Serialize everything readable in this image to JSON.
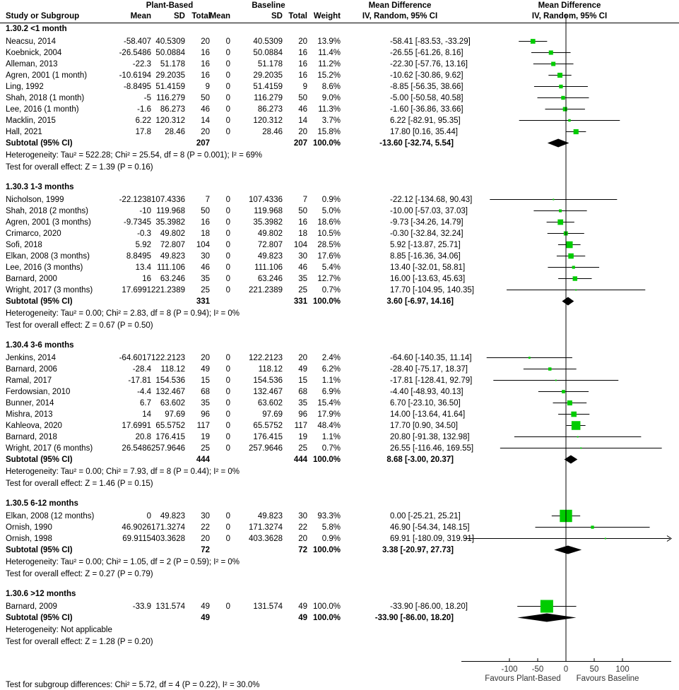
{
  "headers": {
    "study": "Study or Subgroup",
    "group_plant": "Plant-Based",
    "group_base": "Baseline",
    "mean": "Mean",
    "sd": "SD",
    "total": "Total",
    "weight": "Weight",
    "md_title": "Mean Difference",
    "md_method": "IV, Random, 95% CI"
  },
  "chart_data": {
    "type": "forest",
    "measure": "Mean Difference",
    "method": "IV, Random, 95% CI",
    "xlim": [
      -185,
      185
    ],
    "xticks": [
      -100,
      -50,
      0,
      50,
      100
    ],
    "xtick_labels": [
      "-100",
      "-50",
      "0",
      "50",
      "100"
    ],
    "favours_left": "Favours Plant-Based",
    "favours_right": "Favours Baseline",
    "marker_color": "#00cc00",
    "subtotal_label": "Subtotal (95% CI)",
    "groups": [
      {
        "title": "1.30.2 <1 month",
        "studies": [
          [
            "Neacsu, 2014",
            "-58.407",
            "40.5309",
            "20",
            "0",
            "40.5309",
            "20",
            "13.9%",
            "-58.41 [-83.53, -33.29]"
          ],
          [
            "Koebnick, 2004",
            "-26.5486",
            "50.0884",
            "16",
            "0",
            "50.0884",
            "16",
            "11.4%",
            "-26.55 [-61.26, 8.16]"
          ],
          [
            "Alleman, 2013",
            "-22.3",
            "51.178",
            "16",
            "0",
            "51.178",
            "16",
            "11.2%",
            "-22.30 [-57.76, 13.16]"
          ],
          [
            "Agren, 2001 (1 month)",
            "-10.6194",
            "29.2035",
            "16",
            "0",
            "29.2035",
            "16",
            "15.2%",
            "-10.62 [-30.86, 9.62]"
          ],
          [
            "Ling, 1992",
            "-8.8495",
            "51.4159",
            "9",
            "0",
            "51.4159",
            "9",
            "8.6%",
            "-8.85 [-56.35, 38.66]"
          ],
          [
            "Shah, 2018 (1 month)",
            "-5",
            "116.279",
            "50",
            "0",
            "116.279",
            "50",
            "9.0%",
            "-5.00 [-50.58, 40.58]"
          ],
          [
            "Lee, 2016 (1 month)",
            "-1.6",
            "86.273",
            "46",
            "0",
            "86.273",
            "46",
            "11.3%",
            "-1.60 [-36.86, 33.66]"
          ],
          [
            "Macklin, 2015",
            "6.22",
            "120.312",
            "14",
            "0",
            "120.312",
            "14",
            "3.7%",
            "6.22 [-82.91, 95.35]"
          ],
          [
            "Hall, 2021",
            "17.8",
            "28.46",
            "20",
            "0",
            "28.46",
            "20",
            "15.8%",
            "17.80 [0.16, 35.44]"
          ]
        ],
        "subtotal": {
          "plant_total": "207",
          "base_total": "207",
          "weight": "100.0%",
          "ci": "-13.60 [-32.74, 5.54]"
        },
        "heterogeneity": "Heterogeneity: Tau² = 522.28; Chi² = 25.54, df = 8 (P = 0.001); I² = 69%",
        "overall": "Test for overall effect: Z = 1.39 (P = 0.16)"
      },
      {
        "title": "1.30.3 1-3 months",
        "studies": [
          [
            "Nicholson, 1999",
            "-22.1238",
            "107.4336",
            "7",
            "0",
            "107.4336",
            "7",
            "0.9%",
            "-22.12 [-134.68, 90.43]"
          ],
          [
            "Shah, 2018 (2 months)",
            "-10",
            "119.968",
            "50",
            "0",
            "119.968",
            "50",
            "5.0%",
            "-10.00 [-57.03, 37.03]"
          ],
          [
            "Agren, 2001 (3 months)",
            "-9.7345",
            "35.3982",
            "16",
            "0",
            "35.3982",
            "16",
            "18.6%",
            "-9.73 [-34.26, 14.79]"
          ],
          [
            "Crimarco, 2020",
            "-0.3",
            "49.802",
            "18",
            "0",
            "49.802",
            "18",
            "10.5%",
            "-0.30 [-32.84, 32.24]"
          ],
          [
            "Sofi, 2018",
            "5.92",
            "72.807",
            "104",
            "0",
            "72.807",
            "104",
            "28.5%",
            "5.92 [-13.87, 25.71]"
          ],
          [
            "Elkan, 2008 (3 months)",
            "8.8495",
            "49.823",
            "30",
            "0",
            "49.823",
            "30",
            "17.6%",
            "8.85 [-16.36, 34.06]"
          ],
          [
            "Lee, 2016 (3 months)",
            "13.4",
            "111.106",
            "46",
            "0",
            "111.106",
            "46",
            "5.4%",
            "13.40 [-32.01, 58.81]"
          ],
          [
            "Barnard, 2000",
            "16",
            "63.246",
            "35",
            "0",
            "63.246",
            "35",
            "12.7%",
            "16.00 [-13.63, 45.63]"
          ],
          [
            "Wright, 2017 (3 months)",
            "17.6991",
            "221.2389",
            "25",
            "0",
            "221.2389",
            "25",
            "0.7%",
            "17.70 [-104.95, 140.35]"
          ]
        ],
        "subtotal": {
          "plant_total": "331",
          "base_total": "331",
          "weight": "100.0%",
          "ci": "3.60 [-6.97, 14.16]"
        },
        "heterogeneity": "Heterogeneity: Tau² = 0.00; Chi² = 2.83, df = 8 (P = 0.94); I² = 0%",
        "overall": "Test for overall effect: Z = 0.67 (P = 0.50)"
      },
      {
        "title": "1.30.4 3-6 months",
        "studies": [
          [
            "Jenkins, 2014",
            "-64.6017",
            "122.2123",
            "20",
            "0",
            "122.2123",
            "20",
            "2.4%",
            "-64.60 [-140.35, 11.14]"
          ],
          [
            "Barnard, 2006",
            "-28.4",
            "118.12",
            "49",
            "0",
            "118.12",
            "49",
            "6.2%",
            "-28.40 [-75.17, 18.37]"
          ],
          [
            "Ramal, 2017",
            "-17.81",
            "154.536",
            "15",
            "0",
            "154.536",
            "15",
            "1.1%",
            "-17.81 [-128.41, 92.79]"
          ],
          [
            "Ferdowsian, 2010",
            "-4.4",
            "132.467",
            "68",
            "0",
            "132.467",
            "68",
            "6.9%",
            "-4.40 [-48.93, 40.13]"
          ],
          [
            "Bunner, 2014",
            "6.7",
            "63.602",
            "35",
            "0",
            "63.602",
            "35",
            "15.4%",
            "6.70 [-23.10, 36.50]"
          ],
          [
            "Mishra, 2013",
            "14",
            "97.69",
            "96",
            "0",
            "97.69",
            "96",
            "17.9%",
            "14.00 [-13.64, 41.64]"
          ],
          [
            "Kahleova, 2020",
            "17.6991",
            "65.5752",
            "117",
            "0",
            "65.5752",
            "117",
            "48.4%",
            "17.70 [0.90, 34.50]"
          ],
          [
            "Barnard, 2018",
            "20.8",
            "176.415",
            "19",
            "0",
            "176.415",
            "19",
            "1.1%",
            "20.80 [-91.38, 132.98]"
          ],
          [
            "Wright, 2017 (6 months)",
            "26.5486",
            "257.9646",
            "25",
            "0",
            "257.9646",
            "25",
            "0.7%",
            "26.55 [-116.46, 169.55]"
          ]
        ],
        "subtotal": {
          "plant_total": "444",
          "base_total": "444",
          "weight": "100.0%",
          "ci": "8.68 [-3.00, 20.37]"
        },
        "heterogeneity": "Heterogeneity: Tau² = 0.00; Chi² = 7.93, df = 8 (P = 0.44); I² = 0%",
        "overall": "Test for overall effect: Z = 1.46 (P = 0.15)"
      },
      {
        "title": "1.30.5 6-12 months",
        "studies": [
          [
            "Elkan, 2008 (12 months)",
            "0",
            "49.823",
            "30",
            "0",
            "49.823",
            "30",
            "93.3%",
            "0.00 [-25.21, 25.21]"
          ],
          [
            "Ornish, 1990",
            "46.9026",
            "171.3274",
            "22",
            "0",
            "171.3274",
            "22",
            "5.8%",
            "46.90 [-54.34, 148.15]"
          ],
          [
            "Ornish, 1998",
            "69.9115",
            "403.3628",
            "20",
            "0",
            "403.3628",
            "20",
            "0.9%",
            "69.91 [-180.09, 319.91]"
          ]
        ],
        "subtotal": {
          "plant_total": "72",
          "base_total": "72",
          "weight": "100.0%",
          "ci": "3.38 [-20.97, 27.73]"
        },
        "heterogeneity": "Heterogeneity: Tau² = 0.00; Chi² = 1.05, df = 2 (P = 0.59); I² = 0%",
        "overall": "Test for overall effect: Z = 0.27 (P = 0.79)"
      },
      {
        "title": "1.30.6 >12 months",
        "studies": [
          [
            "Barnard, 2009",
            "-33.9",
            "131.574",
            "49",
            "0",
            "131.574",
            "49",
            "100.0%",
            "-33.90 [-86.00, 18.20]"
          ]
        ],
        "subtotal": {
          "plant_total": "49",
          "base_total": "49",
          "weight": "100.0%",
          "ci": "-33.90 [-86.00, 18.20]"
        },
        "heterogeneity": "Heterogeneity: Not applicable",
        "overall": "Test for overall effect: Z = 1.28 (P = 0.20)"
      }
    ],
    "subgroup_test": "Test for subgroup differences: Chi² = 5.72, df = 4 (P = 0.22), I² = 30.0%"
  }
}
